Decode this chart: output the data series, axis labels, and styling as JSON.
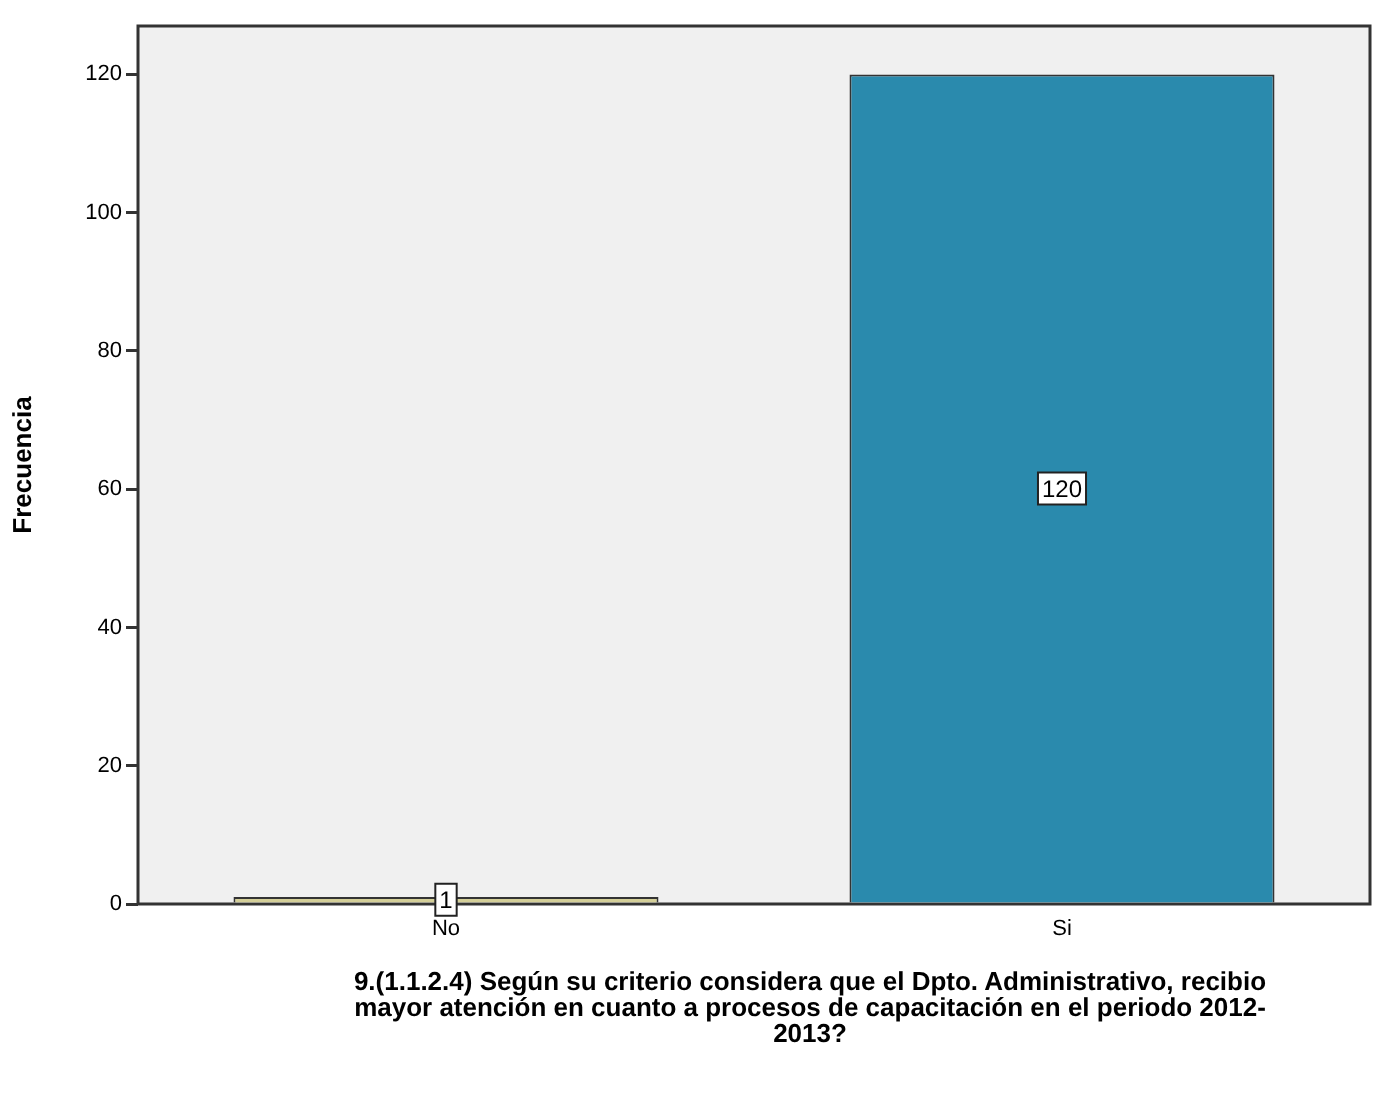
{
  "chart_data": {
    "type": "bar",
    "xlabel": "9.(1.1.2.4) Según su criterio considera que el Dpto. Administrativo, recibio mayor atención en cuanto a procesos de capacitación en el periodo 2012-2013?",
    "ylabel": "Frecuencia",
    "categories": [
      "No",
      "Si"
    ],
    "values": [
      1,
      120
    ],
    "colors": [
      "#d4cf98",
      "#2a8aad"
    ],
    "ylim": [
      0,
      127
    ],
    "yticks": [
      0,
      20,
      40,
      60,
      80,
      100,
      120
    ],
    "grid": false,
    "legend": false,
    "data_labels": true
  }
}
